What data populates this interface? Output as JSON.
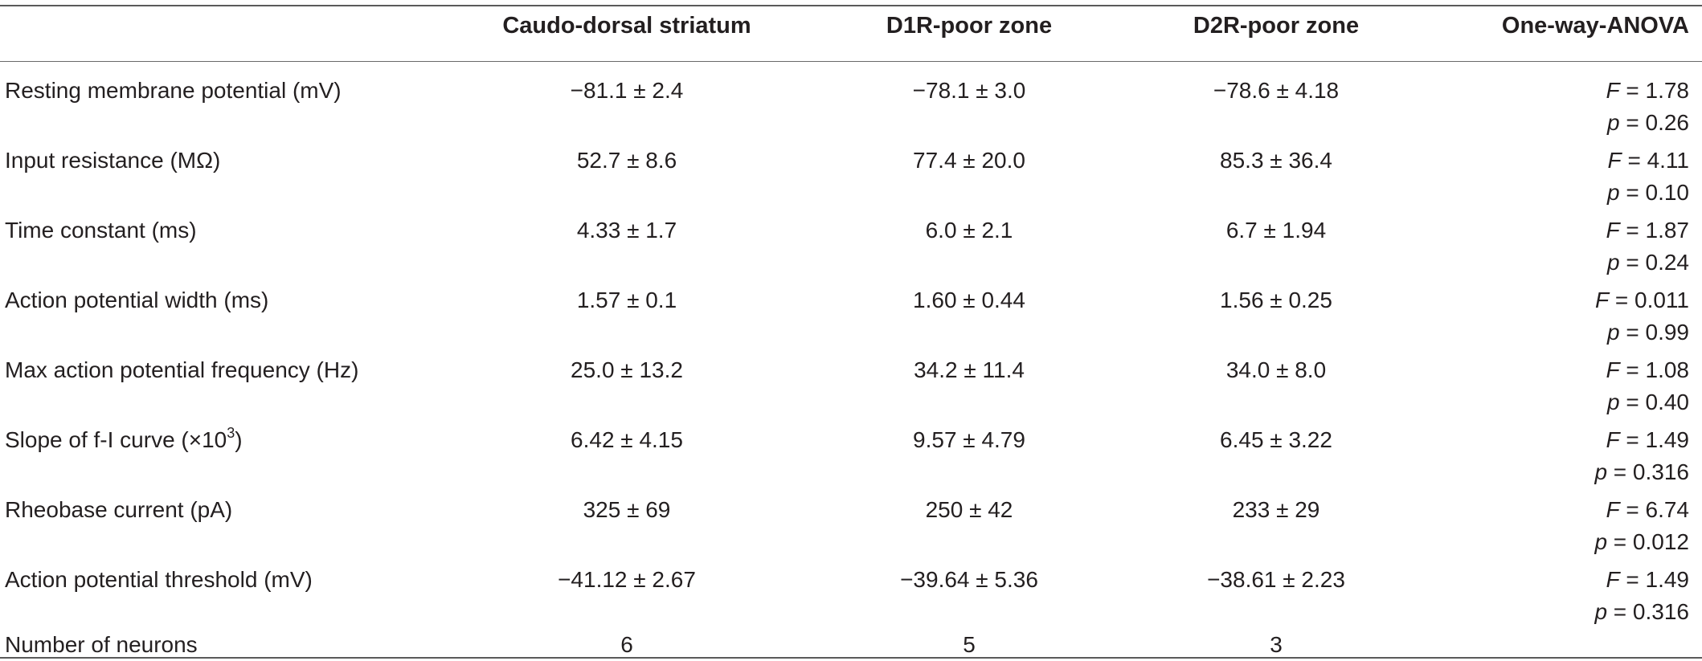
{
  "columns": [
    "",
    "Caudo-dorsal striatum",
    "D1R-poor zone",
    "D2R-poor zone",
    "One-way-ANOVA"
  ],
  "rows": [
    {
      "label": "Resting membrane potential (mV)",
      "c1": "−81.1 ± 2.4",
      "c2": "−78.1 ± 3.0",
      "c3": "−78.6 ± 4.18",
      "f": "= 1.78",
      "p": "= 0.26"
    },
    {
      "label": "Input resistance (MΩ)",
      "c1": "52.7 ± 8.6",
      "c2": "77.4 ± 20.0",
      "c3": "85.3 ± 36.4",
      "f": "= 4.11",
      "p": "= 0.10"
    },
    {
      "label": "Time constant (ms)",
      "c1": "4.33 ± 1.7",
      "c2": "6.0 ± 2.1",
      "c3": "6.7 ± 1.94",
      "f": "= 1.87",
      "p": "= 0.24"
    },
    {
      "label": "Action potential width (ms)",
      "c1": "1.57 ± 0.1",
      "c2": "1.60 ± 0.44",
      "c3": "1.56 ± 0.25",
      "f": "= 0.011",
      "p": "= 0.99"
    },
    {
      "label": "Max action potential frequency (Hz)",
      "c1": "25.0 ± 13.2",
      "c2": "34.2 ± 11.4",
      "c3": "34.0 ± 8.0",
      "f": "= 1.08",
      "p": "= 0.40"
    },
    {
      "label": "Slope of f-I curve (×10",
      "label_sup": "3",
      "label_tail": ")",
      "c1": "6.42 ± 4.15",
      "c2": "9.57 ± 4.79",
      "c3": "6.45 ± 3.22",
      "f": "= 1.49",
      "p": "= 0.316"
    },
    {
      "label": "Rheobase current (pA)",
      "c1": "325 ± 69",
      "c2": "250 ± 42",
      "c3": "233 ± 29",
      "f": "= 6.74",
      "p": "= 0.012"
    },
    {
      "label": "Action potential threshold (mV)",
      "c1": "−41.12 ± 2.67",
      "c2": "−39.64 ± 5.36",
      "c3": "−38.61 ± 2.23",
      "f": "= 1.49",
      "p": "= 0.316"
    },
    {
      "label": "Number of neurons",
      "c1": "6",
      "c2": "5",
      "c3": "3"
    }
  ],
  "stat_symbols": {
    "f": "F",
    "p": "p"
  }
}
